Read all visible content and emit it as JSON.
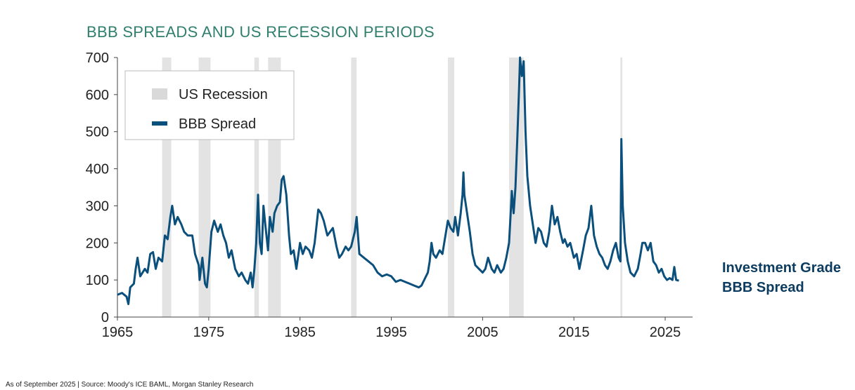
{
  "chart_data": {
    "type": "line",
    "title": "BBB SPREADS AND US RECESSION PERIODS",
    "xlim": [
      1965,
      2028
    ],
    "ylim": [
      0,
      700
    ],
    "x_ticks": [
      "1965",
      "1975",
      "1985",
      "1995",
      "2005",
      "2015",
      "2025"
    ],
    "y_ticks": [
      "0",
      "100",
      "200",
      "300",
      "400",
      "500",
      "600",
      "700"
    ],
    "grid": false,
    "legend_position": "top-left",
    "legend": [
      {
        "label": "US Recession",
        "kind": "band",
        "color": "#d9d9d9"
      },
      {
        "label": "BBB Spread",
        "kind": "line",
        "color": "#0b4f7c"
      }
    ],
    "recessions": [
      [
        1969.9,
        1970.9
      ],
      [
        1973.9,
        1975.2
      ],
      [
        1980.0,
        1980.5
      ],
      [
        1981.5,
        1982.9
      ],
      [
        1990.6,
        1991.2
      ],
      [
        2001.2,
        2001.9
      ],
      [
        2007.9,
        2009.5
      ],
      [
        2020.1,
        2020.3
      ]
    ],
    "series": [
      {
        "name": "BBB Spread",
        "color": "#0b4f7c",
        "points": [
          [
            1965.0,
            60
          ],
          [
            1965.5,
            65
          ],
          [
            1966.0,
            55
          ],
          [
            1966.2,
            35
          ],
          [
            1966.4,
            80
          ],
          [
            1966.8,
            90
          ],
          [
            1967.0,
            130
          ],
          [
            1967.2,
            160
          ],
          [
            1967.5,
            110
          ],
          [
            1968.0,
            130
          ],
          [
            1968.3,
            120
          ],
          [
            1968.6,
            170
          ],
          [
            1968.9,
            175
          ],
          [
            1969.2,
            130
          ],
          [
            1969.5,
            160
          ],
          [
            1969.9,
            150
          ],
          [
            1970.2,
            220
          ],
          [
            1970.5,
            210
          ],
          [
            1970.8,
            270
          ],
          [
            1971.0,
            300
          ],
          [
            1971.3,
            250
          ],
          [
            1971.6,
            270
          ],
          [
            1972.0,
            250
          ],
          [
            1972.3,
            230
          ],
          [
            1972.7,
            220
          ],
          [
            1973.2,
            220
          ],
          [
            1973.5,
            170
          ],
          [
            1973.9,
            140
          ],
          [
            1974.0,
            100
          ],
          [
            1974.3,
            160
          ],
          [
            1974.6,
            90
          ],
          [
            1974.8,
            80
          ],
          [
            1975.0,
            130
          ],
          [
            1975.3,
            230
          ],
          [
            1975.6,
            260
          ],
          [
            1976.0,
            230
          ],
          [
            1976.3,
            250
          ],
          [
            1976.6,
            220
          ],
          [
            1976.9,
            200
          ],
          [
            1977.2,
            160
          ],
          [
            1977.5,
            180
          ],
          [
            1977.9,
            130
          ],
          [
            1978.3,
            110
          ],
          [
            1978.6,
            120
          ],
          [
            1979.0,
            100
          ],
          [
            1979.3,
            90
          ],
          [
            1979.6,
            120
          ],
          [
            1979.8,
            80
          ],
          [
            1980.0,
            130
          ],
          [
            1980.2,
            200
          ],
          [
            1980.4,
            330
          ],
          [
            1980.6,
            200
          ],
          [
            1980.8,
            170
          ],
          [
            1981.0,
            300
          ],
          [
            1981.2,
            250
          ],
          [
            1981.5,
            180
          ],
          [
            1981.7,
            270
          ],
          [
            1982.0,
            230
          ],
          [
            1982.2,
            280
          ],
          [
            1982.5,
            300
          ],
          [
            1982.8,
            310
          ],
          [
            1983.0,
            370
          ],
          [
            1983.2,
            380
          ],
          [
            1983.5,
            330
          ],
          [
            1983.8,
            220
          ],
          [
            1984.0,
            170
          ],
          [
            1984.3,
            180
          ],
          [
            1984.6,
            130
          ],
          [
            1985.0,
            200
          ],
          [
            1985.3,
            170
          ],
          [
            1985.6,
            190
          ],
          [
            1986.0,
            180
          ],
          [
            1986.3,
            160
          ],
          [
            1986.6,
            200
          ],
          [
            1987.0,
            290
          ],
          [
            1987.3,
            280
          ],
          [
            1987.6,
            260
          ],
          [
            1988.0,
            220
          ],
          [
            1988.3,
            230
          ],
          [
            1988.6,
            240
          ],
          [
            1989.0,
            190
          ],
          [
            1989.3,
            160
          ],
          [
            1989.6,
            170
          ],
          [
            1990.0,
            190
          ],
          [
            1990.3,
            180
          ],
          [
            1990.6,
            190
          ],
          [
            1991.0,
            230
          ],
          [
            1991.2,
            270
          ],
          [
            1991.5,
            170
          ],
          [
            1992.0,
            160
          ],
          [
            1992.5,
            150
          ],
          [
            1993.0,
            140
          ],
          [
            1993.5,
            120
          ],
          [
            1994.0,
            110
          ],
          [
            1994.5,
            115
          ],
          [
            1995.0,
            110
          ],
          [
            1995.5,
            95
          ],
          [
            1996.0,
            100
          ],
          [
            1996.5,
            95
          ],
          [
            1997.0,
            90
          ],
          [
            1997.5,
            85
          ],
          [
            1998.0,
            80
          ],
          [
            1998.3,
            85
          ],
          [
            1998.6,
            100
          ],
          [
            1999.0,
            120
          ],
          [
            1999.2,
            150
          ],
          [
            1999.4,
            200
          ],
          [
            1999.6,
            170
          ],
          [
            1999.9,
            160
          ],
          [
            2000.3,
            180
          ],
          [
            2000.6,
            170
          ],
          [
            2001.0,
            230
          ],
          [
            2001.2,
            260
          ],
          [
            2001.5,
            240
          ],
          [
            2001.8,
            230
          ],
          [
            2002.0,
            270
          ],
          [
            2002.3,
            220
          ],
          [
            2002.6,
            280
          ],
          [
            2002.8,
            330
          ],
          [
            2002.9,
            390
          ],
          [
            2003.0,
            330
          ],
          [
            2003.3,
            280
          ],
          [
            2003.6,
            230
          ],
          [
            2003.9,
            170
          ],
          [
            2004.2,
            140
          ],
          [
            2004.6,
            130
          ],
          [
            2005.0,
            120
          ],
          [
            2005.3,
            130
          ],
          [
            2005.6,
            160
          ],
          [
            2006.0,
            130
          ],
          [
            2006.3,
            120
          ],
          [
            2006.6,
            140
          ],
          [
            2007.0,
            120
          ],
          [
            2007.3,
            130
          ],
          [
            2007.6,
            160
          ],
          [
            2007.9,
            200
          ],
          [
            2008.1,
            290
          ],
          [
            2008.2,
            340
          ],
          [
            2008.4,
            280
          ],
          [
            2008.6,
            350
          ],
          [
            2008.8,
            480
          ],
          [
            2009.0,
            620
          ],
          [
            2009.1,
            700
          ],
          [
            2009.3,
            650
          ],
          [
            2009.5,
            690
          ],
          [
            2009.7,
            500
          ],
          [
            2009.9,
            380
          ],
          [
            2010.2,
            300
          ],
          [
            2010.5,
            250
          ],
          [
            2010.8,
            200
          ],
          [
            2011.1,
            240
          ],
          [
            2011.4,
            230
          ],
          [
            2011.7,
            200
          ],
          [
            2012.0,
            190
          ],
          [
            2012.3,
            230
          ],
          [
            2012.6,
            300
          ],
          [
            2012.9,
            250
          ],
          [
            2013.2,
            270
          ],
          [
            2013.5,
            230
          ],
          [
            2013.8,
            200
          ],
          [
            2014.0,
            210
          ],
          [
            2014.3,
            190
          ],
          [
            2014.6,
            200
          ],
          [
            2015.0,
            160
          ],
          [
            2015.3,
            170
          ],
          [
            2015.6,
            130
          ],
          [
            2016.0,
            180
          ],
          [
            2016.3,
            220
          ],
          [
            2016.6,
            240
          ],
          [
            2016.9,
            300
          ],
          [
            2017.2,
            220
          ],
          [
            2017.5,
            190
          ],
          [
            2017.8,
            170
          ],
          [
            2018.1,
            160
          ],
          [
            2018.4,
            140
          ],
          [
            2018.7,
            130
          ],
          [
            2019.0,
            150
          ],
          [
            2019.3,
            180
          ],
          [
            2019.6,
            200
          ],
          [
            2019.9,
            160
          ],
          [
            2020.1,
            150
          ],
          [
            2020.2,
            480
          ],
          [
            2020.35,
            300
          ],
          [
            2020.6,
            200
          ],
          [
            2020.9,
            150
          ],
          [
            2021.2,
            120
          ],
          [
            2021.6,
            110
          ],
          [
            2022.0,
            130
          ],
          [
            2022.3,
            170
          ],
          [
            2022.5,
            200
          ],
          [
            2022.8,
            200
          ],
          [
            2023.1,
            180
          ],
          [
            2023.4,
            200
          ],
          [
            2023.7,
            150
          ],
          [
            2024.0,
            140
          ],
          [
            2024.3,
            120
          ],
          [
            2024.6,
            130
          ],
          [
            2024.9,
            110
          ],
          [
            2025.2,
            100
          ],
          [
            2025.5,
            105
          ],
          [
            2025.8,
            100
          ],
          [
            2026.0,
            135
          ],
          [
            2026.2,
            100
          ],
          [
            2026.5,
            98
          ]
        ]
      }
    ]
  },
  "side_label": {
    "line1": "Investment Grade",
    "line2": "BBB Spread"
  },
  "source_note": "As of September 2025 | Source: Moody's ICE BAML, Morgan Stanley Research"
}
